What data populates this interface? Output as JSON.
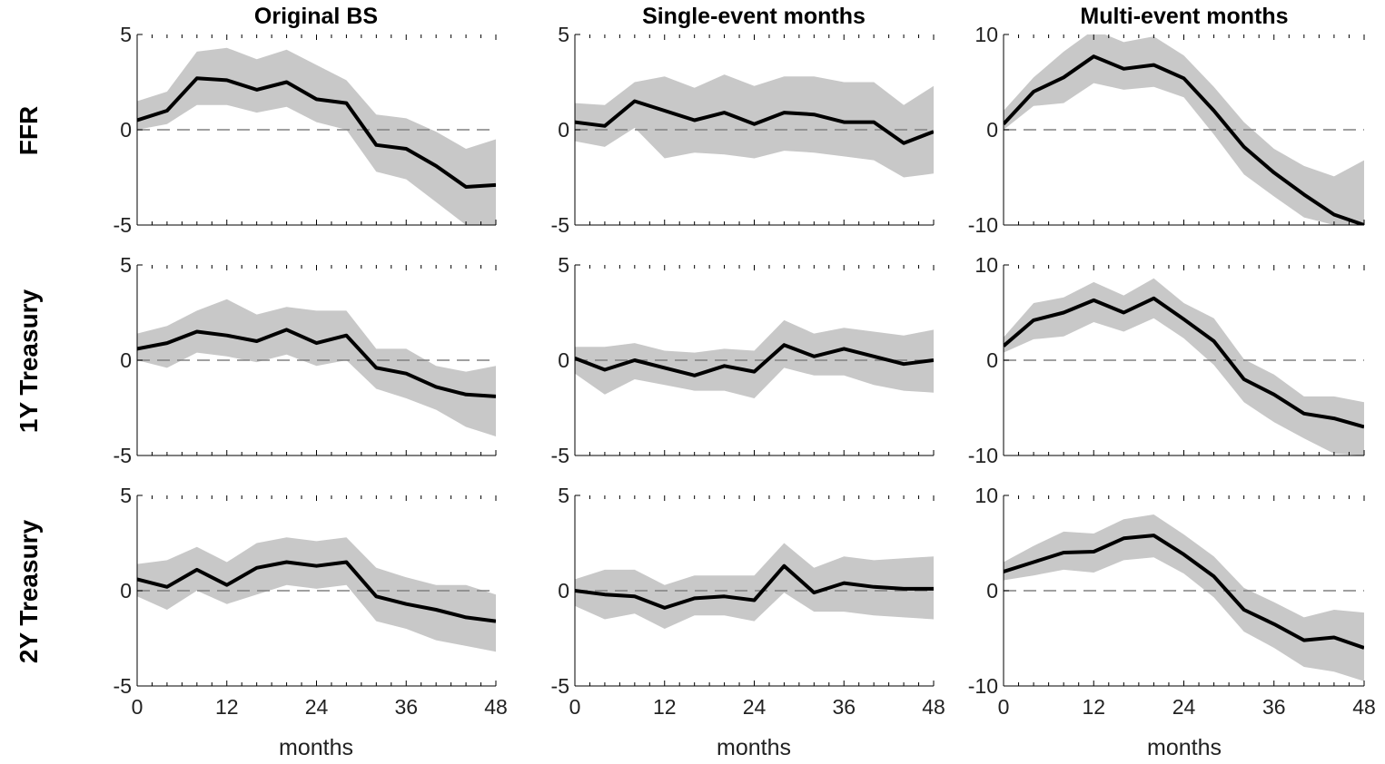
{
  "column_titles": [
    "Original BS",
    "Single-event months",
    "Multi-event months"
  ],
  "row_labels": [
    "FFR",
    "1Y Treasury",
    "2Y Treasury"
  ],
  "xlabel": "months",
  "colors": {
    "band": "#c8c8c8",
    "line": "#000000",
    "zero_line": "#808080",
    "axis": "#000000"
  },
  "chart_data": [
    {
      "type": "area",
      "panel": "FFR / Original BS",
      "x": [
        0,
        4,
        8,
        12,
        16,
        20,
        24,
        28,
        32,
        36,
        40,
        44,
        48
      ],
      "y": [
        0.5,
        1.0,
        2.7,
        2.6,
        2.1,
        2.5,
        1.6,
        1.4,
        -0.8,
        -1.0,
        -1.9,
        -3.0,
        -2.9
      ],
      "lower": [
        0.0,
        0.3,
        1.3,
        1.3,
        0.9,
        1.2,
        0.4,
        0.0,
        -2.2,
        -2.6,
        -3.8,
        -5.0,
        -5.2
      ],
      "upper": [
        1.5,
        2.0,
        4.1,
        4.3,
        3.7,
        4.2,
        3.4,
        2.6,
        0.8,
        0.6,
        -0.1,
        -1.0,
        -0.5
      ],
      "xticks": [
        0,
        12,
        24,
        36,
        48
      ],
      "yticks": [
        -5,
        0,
        5
      ],
      "xlim": [
        0,
        48
      ],
      "ylim": [
        -5,
        5
      ]
    },
    {
      "type": "area",
      "panel": "FFR / Single-event months",
      "x": [
        0,
        4,
        8,
        12,
        16,
        20,
        24,
        28,
        32,
        36,
        40,
        44,
        48
      ],
      "y": [
        0.4,
        0.2,
        1.5,
        1.0,
        0.5,
        0.9,
        0.3,
        0.9,
        0.8,
        0.4,
        0.4,
        -0.7,
        -0.1
      ],
      "lower": [
        -0.6,
        -0.9,
        0.1,
        -1.5,
        -1.2,
        -1.3,
        -1.5,
        -1.1,
        -1.2,
        -1.4,
        -1.6,
        -2.5,
        -2.3
      ],
      "upper": [
        1.4,
        1.3,
        2.5,
        2.8,
        2.2,
        2.9,
        2.3,
        2.8,
        2.8,
        2.5,
        2.5,
        1.3,
        2.3
      ],
      "xticks": [
        0,
        12,
        24,
        36,
        48
      ],
      "yticks": [
        -5,
        0,
        5
      ],
      "xlim": [
        0,
        48
      ],
      "ylim": [
        -5,
        5
      ]
    },
    {
      "type": "area",
      "panel": "FFR / Multi-event months",
      "x": [
        0,
        4,
        8,
        12,
        16,
        20,
        24,
        28,
        32,
        36,
        40,
        44,
        48
      ],
      "y": [
        0.6,
        4.0,
        5.5,
        7.7,
        6.4,
        6.8,
        5.4,
        2.0,
        -1.8,
        -4.5,
        -6.8,
        -8.9,
        -10.0
      ],
      "lower": [
        0.0,
        2.5,
        2.8,
        4.9,
        4.2,
        4.5,
        3.4,
        -0.5,
        -4.7,
        -7.0,
        -9.2,
        -10.0,
        -10.0
      ],
      "upper": [
        2.0,
        5.5,
        8.2,
        10.5,
        9.2,
        9.8,
        7.8,
        4.5,
        0.8,
        -2.0,
        -3.8,
        -4.9,
        -3.2
      ],
      "xticks": [
        0,
        12,
        24,
        36,
        48
      ],
      "yticks": [
        -10,
        0,
        10
      ],
      "xlim": [
        0,
        48
      ],
      "ylim": [
        -10,
        10
      ]
    },
    {
      "type": "area",
      "panel": "1Y Treasury / Original BS",
      "x": [
        0,
        4,
        8,
        12,
        16,
        20,
        24,
        28,
        32,
        36,
        40,
        44,
        48
      ],
      "y": [
        0.6,
        0.9,
        1.5,
        1.3,
        1.0,
        1.6,
        0.9,
        1.3,
        -0.4,
        -0.7,
        -1.4,
        -1.8,
        -1.9
      ],
      "lower": [
        0.0,
        -0.4,
        0.4,
        0.2,
        -0.1,
        0.3,
        -0.3,
        0.0,
        -1.5,
        -2.0,
        -2.6,
        -3.5,
        -4.0
      ],
      "upper": [
        1.4,
        1.8,
        2.6,
        3.2,
        2.4,
        2.8,
        2.6,
        2.6,
        0.6,
        0.6,
        -0.3,
        -0.6,
        -0.3
      ],
      "xticks": [
        0,
        12,
        24,
        36,
        48
      ],
      "yticks": [
        -5,
        0,
        5
      ],
      "xlim": [
        0,
        48
      ],
      "ylim": [
        -5,
        5
      ]
    },
    {
      "type": "area",
      "panel": "1Y Treasury / Single-event months",
      "x": [
        0,
        4,
        8,
        12,
        16,
        20,
        24,
        28,
        32,
        36,
        40,
        44,
        48
      ],
      "y": [
        0.1,
        -0.5,
        0.0,
        -0.4,
        -0.8,
        -0.3,
        -0.6,
        0.8,
        0.2,
        0.6,
        0.2,
        -0.2,
        0.0
      ],
      "lower": [
        -0.7,
        -1.8,
        -1.0,
        -1.3,
        -1.6,
        -1.6,
        -2.0,
        -0.4,
        -0.8,
        -0.8,
        -1.3,
        -1.6,
        -1.7
      ],
      "upper": [
        0.7,
        0.7,
        0.9,
        0.5,
        0.4,
        0.6,
        0.5,
        2.1,
        1.4,
        1.7,
        1.5,
        1.3,
        1.6
      ],
      "xticks": [
        0,
        12,
        24,
        36,
        48
      ],
      "yticks": [
        -5,
        0,
        5
      ],
      "xlim": [
        0,
        48
      ],
      "ylim": [
        -5,
        5
      ]
    },
    {
      "type": "area",
      "panel": "1Y Treasury / Multi-event months",
      "x": [
        0,
        4,
        8,
        12,
        16,
        20,
        24,
        28,
        32,
        36,
        40,
        44,
        48
      ],
      "y": [
        1.5,
        4.2,
        5.0,
        6.3,
        5.0,
        6.5,
        4.3,
        2.0,
        -2.0,
        -3.6,
        -5.6,
        -6.1,
        -7.0
      ],
      "lower": [
        0.8,
        2.2,
        2.5,
        4.0,
        3.0,
        4.4,
        2.3,
        -0.5,
        -4.4,
        -6.5,
        -8.2,
        -9.8,
        -10.0
      ],
      "upper": [
        2.4,
        6.0,
        6.6,
        8.2,
        6.8,
        8.6,
        6.0,
        4.4,
        0.1,
        -1.5,
        -3.8,
        -3.8,
        -4.4
      ],
      "xticks": [
        0,
        12,
        24,
        36,
        48
      ],
      "yticks": [
        -10,
        0,
        10
      ],
      "xlim": [
        0,
        48
      ],
      "ylim": [
        -10,
        10
      ]
    },
    {
      "type": "area",
      "panel": "2Y Treasury / Original BS",
      "x": [
        0,
        4,
        8,
        12,
        16,
        20,
        24,
        28,
        32,
        36,
        40,
        44,
        48
      ],
      "y": [
        0.6,
        0.2,
        1.1,
        0.3,
        1.2,
        1.5,
        1.3,
        1.5,
        -0.3,
        -0.7,
        -1.0,
        -1.4,
        -1.6
      ],
      "lower": [
        -0.3,
        -1.0,
        0.0,
        -0.7,
        -0.2,
        0.3,
        0.1,
        0.3,
        -1.6,
        -2.0,
        -2.6,
        -2.9,
        -3.2
      ],
      "upper": [
        1.4,
        1.6,
        2.3,
        1.5,
        2.5,
        2.8,
        2.6,
        2.8,
        1.2,
        0.7,
        0.3,
        0.3,
        -0.2
      ],
      "xticks": [
        0,
        12,
        24,
        36,
        48
      ],
      "yticks": [
        -5,
        0,
        5
      ],
      "xlim": [
        0,
        48
      ],
      "ylim": [
        -5,
        5
      ]
    },
    {
      "type": "area",
      "panel": "2Y Treasury / Single-event months",
      "x": [
        0,
        4,
        8,
        12,
        16,
        20,
        24,
        28,
        32,
        36,
        40,
        44,
        48
      ],
      "y": [
        0.0,
        -0.2,
        -0.3,
        -0.9,
        -0.4,
        -0.3,
        -0.5,
        1.3,
        -0.1,
        0.4,
        0.2,
        0.1,
        0.1
      ],
      "lower": [
        -0.8,
        -1.5,
        -1.2,
        -2.0,
        -1.3,
        -1.3,
        -1.6,
        -0.1,
        -1.1,
        -1.1,
        -1.3,
        -1.4,
        -1.5
      ],
      "upper": [
        0.6,
        1.1,
        1.1,
        0.3,
        0.8,
        0.8,
        0.8,
        2.5,
        1.2,
        1.8,
        1.6,
        1.7,
        1.8
      ],
      "xticks": [
        0,
        12,
        24,
        36,
        48
      ],
      "yticks": [
        -5,
        0,
        5
      ],
      "xlim": [
        0,
        48
      ],
      "ylim": [
        -5,
        5
      ]
    },
    {
      "type": "area",
      "panel": "2Y Treasury / Multi-event months",
      "x": [
        0,
        4,
        8,
        12,
        16,
        20,
        24,
        28,
        32,
        36,
        40,
        44,
        48
      ],
      "y": [
        2.0,
        3.0,
        4.0,
        4.1,
        5.5,
        5.8,
        3.8,
        1.5,
        -2.0,
        -3.5,
        -5.2,
        -4.9,
        -6.0
      ],
      "lower": [
        1.1,
        1.6,
        2.2,
        1.9,
        3.2,
        3.5,
        1.8,
        -0.7,
        -4.3,
        -6.0,
        -8.0,
        -8.5,
        -9.5
      ],
      "upper": [
        3.0,
        4.7,
        6.2,
        6.0,
        7.5,
        8.0,
        5.9,
        3.6,
        0.3,
        -1.2,
        -2.8,
        -2.0,
        -2.3
      ],
      "xticks": [
        0,
        12,
        24,
        36,
        48
      ],
      "yticks": [
        -10,
        0,
        10
      ],
      "xlim": [
        0,
        48
      ],
      "ylim": [
        -10,
        10
      ]
    }
  ]
}
